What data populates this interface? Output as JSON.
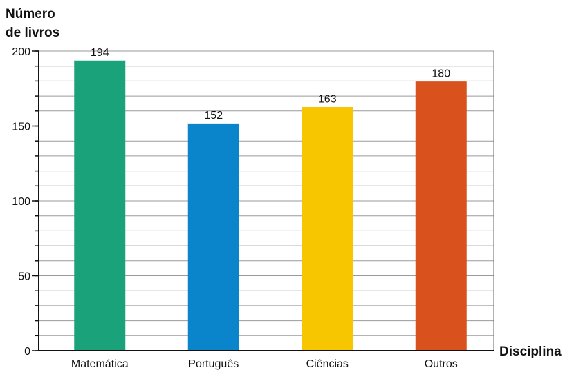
{
  "chart_data": {
    "type": "bar",
    "ylabel_line1": "Número",
    "ylabel_line2": "de livros",
    "xlabel": "Disciplina",
    "categories": [
      "Matemática",
      "Português",
      "Ciências",
      "Outros"
    ],
    "values": [
      194,
      152,
      163,
      180
    ],
    "value_labels": [
      "194",
      "152",
      "163",
      "180"
    ],
    "colors": [
      "#1aa37a",
      "#0a85cc",
      "#f7c600",
      "#d9511c"
    ],
    "ylim": [
      0,
      200
    ],
    "yticks": [
      0,
      50,
      100,
      150,
      200
    ],
    "ytick_labels": [
      "0",
      "50",
      "100",
      "150",
      "200"
    ],
    "minor_step": 10,
    "grid": true
  }
}
